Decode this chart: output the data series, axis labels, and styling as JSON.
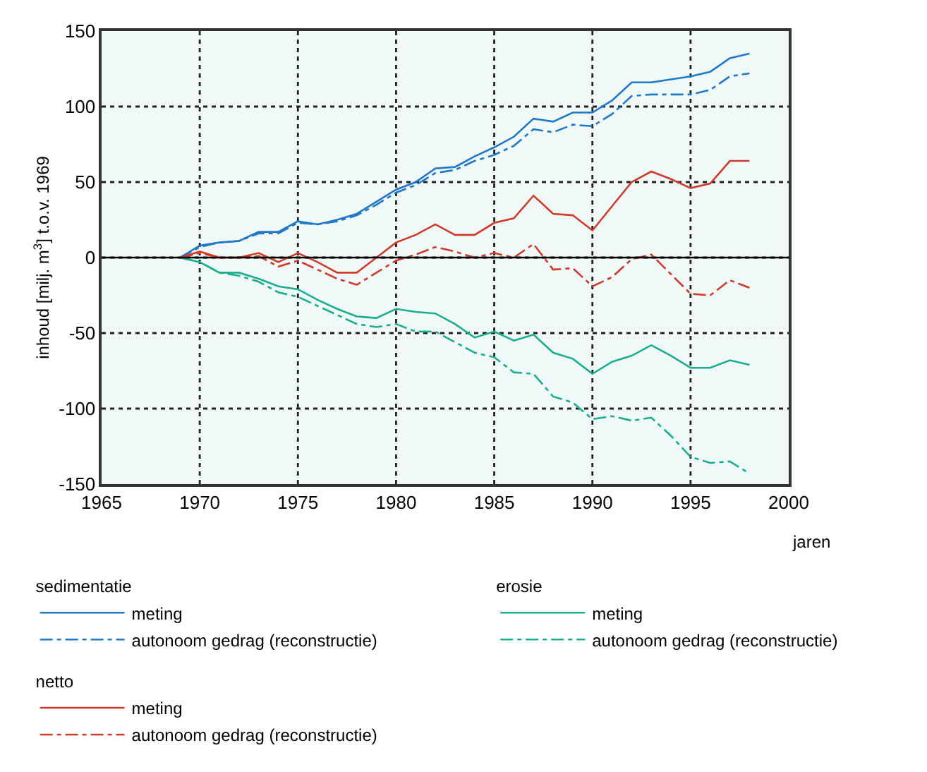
{
  "chart_data": {
    "type": "line",
    "annotations": [
      "sedimentatie",
      "erosie",
      "netto"
    ],
    "xlabel": "jaren",
    "ylabel": "inhoud [milj. m$^{3}$] t.o.v. 1969",
    "x": [
      1969,
      1970,
      1971,
      1972,
      1973,
      1974,
      1975,
      1976,
      1977,
      1978,
      1979,
      1980,
      1981,
      1982,
      1983,
      1984,
      1985,
      1986,
      1987,
      1988,
      1989,
      1990,
      1991,
      1992,
      1993,
      1994,
      1995,
      1996,
      1997,
      1998
    ],
    "series": [
      {
        "name": "meting",
        "color": "#1f78c8",
        "line_style": "solid",
        "values": [
          0,
          8,
          10,
          11,
          17,
          17,
          24,
          22,
          25,
          29,
          37,
          45,
          50,
          59,
          60,
          67,
          73,
          80,
          92,
          90,
          96,
          96,
          104,
          116,
          116,
          118,
          120,
          123,
          132,
          135
        ]
      },
      {
        "name": "autonoom gedrag (reconstructie)",
        "color": "#1f78c8",
        "line_style": "dashed",
        "values": [
          0,
          7,
          10,
          11,
          16,
          16,
          23,
          22,
          24,
          28,
          35,
          43,
          48,
          56,
          58,
          64,
          68,
          74,
          85,
          83,
          88,
          87,
          95,
          107,
          108,
          108,
          108,
          111,
          120,
          122
        ]
      },
      {
        "name": "meting",
        "color": "#1aae8f",
        "line_style": "solid",
        "values": [
          0,
          -3,
          -10,
          -10,
          -14,
          -19,
          -21,
          -28,
          -34,
          -39,
          -40,
          -34,
          -36,
          -37,
          -44,
          -53,
          -49,
          -55,
          -51,
          -63,
          -67,
          -77,
          -69,
          -65,
          -58,
          -65,
          -73,
          -73,
          -68,
          -71
        ]
      },
      {
        "name": "autonoom gedrag (reconstructie)",
        "color": "#1aae8f",
        "line_style": "dashed",
        "values": [
          0,
          -3,
          -10,
          -12,
          -16,
          -23,
          -26,
          -32,
          -38,
          -44,
          -46,
          -44,
          -49,
          -49,
          -56,
          -63,
          -66,
          -76,
          -77,
          -92,
          -96,
          -107,
          -105,
          -108,
          -106,
          -118,
          -132,
          -136,
          -135,
          -143
        ]
      },
      {
        "name": "meting",
        "color": "#d03a2a",
        "line_style": "solid",
        "values": [
          0,
          4,
          0,
          0,
          3,
          -3,
          3,
          -3,
          -10,
          -10,
          0,
          10,
          15,
          22,
          15,
          15,
          23,
          26,
          41,
          29,
          28,
          18,
          34,
          50,
          57,
          52,
          46,
          49,
          64,
          64
        ]
      },
      {
        "name": "autonoom gedrag (reconstructie)",
        "color": "#d03a2a",
        "line_style": "dashed",
        "values": [
          0,
          3,
          0,
          0,
          1,
          -6,
          -2,
          -8,
          -14,
          -18,
          -10,
          -2,
          2,
          7,
          4,
          0,
          3,
          0,
          9,
          -8,
          -7,
          -19,
          -13,
          -1,
          2,
          -11,
          -24,
          -25,
          -15,
          -20
        ]
      }
    ],
    "xlim": [
      1965,
      2000
    ],
    "xticks": [
      1965,
      1970,
      1975,
      1980,
      1985,
      1990,
      1995,
      2000
    ],
    "ylim": [
      -150,
      150
    ],
    "yticks": [
      -150,
      -100,
      -50,
      0,
      50,
      100,
      150
    ],
    "ref_lines": [
      {
        "axis": "y",
        "value": 0,
        "color": "#000000",
        "line_style": "solid"
      }
    ],
    "grid": true,
    "legend": "bottom"
  }
}
